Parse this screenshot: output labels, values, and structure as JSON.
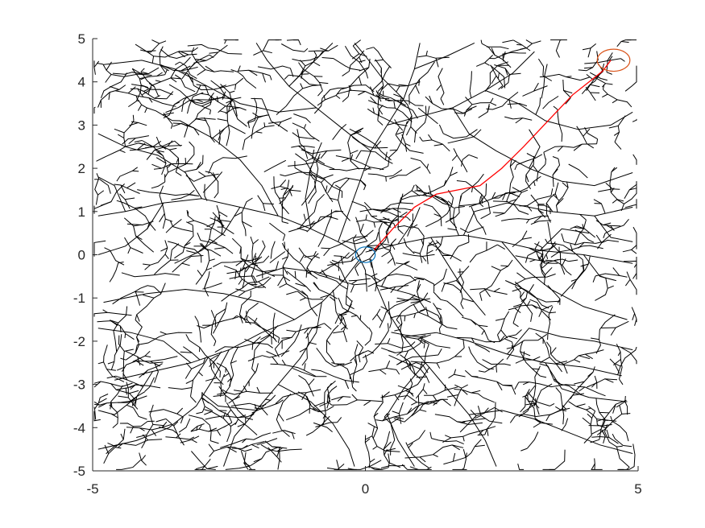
{
  "chart_data": {
    "type": "line",
    "title": "",
    "xlabel": "",
    "ylabel": "",
    "xlim": [
      -5,
      5
    ],
    "ylim": [
      -5,
      5
    ],
    "grid": false,
    "x_ticks": [
      {
        "value": -5,
        "label": "-5"
      },
      {
        "value": 0,
        "label": "0"
      },
      {
        "value": 5,
        "label": "5"
      }
    ],
    "y_ticks": [
      {
        "value": 5,
        "label": "5"
      },
      {
        "value": 4,
        "label": "4"
      },
      {
        "value": 3,
        "label": "3"
      },
      {
        "value": 2,
        "label": "2"
      },
      {
        "value": 1,
        "label": "1"
      },
      {
        "value": 0,
        "label": "0"
      },
      {
        "value": -1,
        "label": "-1"
      },
      {
        "value": -2,
        "label": "-2"
      },
      {
        "value": -3,
        "label": "-3"
      },
      {
        "value": -4,
        "label": "-4"
      },
      {
        "value": -5,
        "label": "-5"
      }
    ],
    "tree": {
      "color": "#000000",
      "root": [
        0,
        0
      ],
      "branches": [
        [
          [
            0.15,
            0.1
          ],
          [
            0.6,
            0.25
          ],
          [
            1.2,
            0.4
          ],
          [
            1.8,
            0.45
          ],
          [
            2.5,
            0.3
          ],
          [
            3.2,
            0.1
          ],
          [
            4.0,
            0.0
          ],
          [
            4.9,
            -0.2
          ]
        ],
        [
          [
            0.6,
            0.25
          ],
          [
            0.9,
            0.8
          ],
          [
            1.0,
            1.1
          ]
        ],
        [
          [
            1.2,
            0.4
          ],
          [
            1.5,
            -0.2
          ],
          [
            1.8,
            -0.8
          ],
          [
            2.2,
            -1.4
          ]
        ],
        [
          [
            1.8,
            0.45
          ],
          [
            2.0,
            1.0
          ],
          [
            2.6,
            1.2
          ],
          [
            3.4,
            1.0
          ],
          [
            4.2,
            0.9
          ],
          [
            4.9,
            1.1
          ]
        ],
        [
          [
            2.5,
            0.3
          ],
          [
            2.9,
            -0.3
          ],
          [
            3.4,
            -0.8
          ],
          [
            4.0,
            -1.2
          ],
          [
            4.8,
            -1.5
          ]
        ],
        [
          [
            3.2,
            0.1
          ],
          [
            3.6,
            0.6
          ],
          [
            4.1,
            0.5
          ]
        ],
        [
          [
            4.0,
            0.0
          ],
          [
            4.3,
            -0.5
          ],
          [
            4.6,
            -0.6
          ]
        ],
        [
          [
            -0.15,
            0.05
          ],
          [
            -0.5,
            0.3
          ],
          [
            -1.0,
            0.6
          ],
          [
            -1.6,
            0.9
          ],
          [
            -2.3,
            1.1
          ],
          [
            -3.0,
            1.3
          ],
          [
            -3.7,
            1.2
          ],
          [
            -4.4,
            1.0
          ],
          [
            -4.9,
            0.9
          ]
        ],
        [
          [
            -1.0,
            0.6
          ],
          [
            -1.1,
            1.3
          ],
          [
            -1.0,
            2.0
          ],
          [
            -0.8,
            2.6
          ]
        ],
        [
          [
            -1.6,
            0.9
          ],
          [
            -1.9,
            1.6
          ],
          [
            -2.3,
            2.2
          ],
          [
            -2.8,
            2.7
          ],
          [
            -3.4,
            3.1
          ]
        ],
        [
          [
            -2.3,
            1.1
          ],
          [
            -2.6,
            0.5
          ],
          [
            -3.0,
            0.1
          ],
          [
            -3.5,
            -0.2
          ]
        ],
        [
          [
            -3.0,
            1.3
          ],
          [
            -3.3,
            1.9
          ],
          [
            -3.8,
            2.3
          ],
          [
            -4.4,
            2.5
          ],
          [
            -4.9,
            2.8
          ]
        ],
        [
          [
            -3.7,
            1.2
          ],
          [
            -4.0,
            0.6
          ],
          [
            -4.4,
            0.2
          ],
          [
            -4.9,
            0.0
          ]
        ],
        [
          [
            -0.5,
            0.3
          ],
          [
            -0.3,
            1.0
          ],
          [
            -0.1,
            1.7
          ],
          [
            0.1,
            2.4
          ],
          [
            0.4,
            3.0
          ],
          [
            0.7,
            3.6
          ],
          [
            0.9,
            4.3
          ],
          [
            1.0,
            4.9
          ]
        ],
        [
          [
            0.1,
            2.4
          ],
          [
            -0.4,
            2.9
          ],
          [
            -0.9,
            3.4
          ],
          [
            -1.4,
            3.9
          ],
          [
            -1.8,
            4.5
          ],
          [
            -2.0,
            4.9
          ]
        ],
        [
          [
            0.4,
            3.0
          ],
          [
            1.0,
            3.2
          ],
          [
            1.6,
            3.4
          ],
          [
            2.2,
            3.8
          ],
          [
            2.7,
            4.2
          ],
          [
            3.1,
            4.7
          ]
        ],
        [
          [
            -0.9,
            3.4
          ],
          [
            -1.6,
            3.3
          ],
          [
            -2.3,
            3.5
          ],
          [
            -2.9,
            3.9
          ],
          [
            -3.5,
            4.3
          ],
          [
            -4.1,
            4.5
          ],
          [
            -4.8,
            4.4
          ]
        ],
        [
          [
            -1.4,
            3.9
          ],
          [
            -1.0,
            4.4
          ],
          [
            -0.6,
            4.9
          ]
        ],
        [
          [
            1.6,
            3.4
          ],
          [
            1.9,
            2.8
          ],
          [
            2.4,
            2.4
          ],
          [
            3.0,
            2.0
          ],
          [
            3.6,
            1.7
          ],
          [
            4.2,
            1.6
          ],
          [
            4.9,
            1.9
          ]
        ],
        [
          [
            2.2,
            3.8
          ],
          [
            2.8,
            3.5
          ],
          [
            3.3,
            3.1
          ],
          [
            3.9,
            2.9
          ],
          [
            4.5,
            3.0
          ],
          [
            4.9,
            3.3
          ]
        ],
        [
          [
            0.9,
            4.3
          ],
          [
            1.5,
            4.6
          ],
          [
            2.0,
            4.9
          ]
        ],
        [
          [
            -0.1,
            -0.1
          ],
          [
            -0.4,
            -0.6
          ],
          [
            -0.8,
            -1.1
          ],
          [
            -1.3,
            -1.5
          ],
          [
            -1.9,
            -1.8
          ],
          [
            -2.5,
            -2.2
          ],
          [
            -3.2,
            -2.5
          ],
          [
            -3.9,
            -2.7
          ],
          [
            -4.6,
            -2.9
          ]
        ],
        [
          [
            -0.8,
            -1.1
          ],
          [
            -0.9,
            -1.8
          ],
          [
            -1.2,
            -2.4
          ],
          [
            -1.6,
            -3.0
          ],
          [
            -2.0,
            -3.6
          ],
          [
            -2.4,
            -4.2
          ],
          [
            -2.6,
            -4.9
          ]
        ],
        [
          [
            -1.3,
            -1.5
          ],
          [
            -1.9,
            -1.1
          ],
          [
            -2.6,
            -0.9
          ],
          [
            -3.3,
            -0.8
          ],
          [
            -4.0,
            -0.9
          ],
          [
            -4.8,
            -1.1
          ]
        ],
        [
          [
            -2.5,
            -2.2
          ],
          [
            -2.8,
            -2.9
          ],
          [
            -3.1,
            -3.5
          ],
          [
            -3.6,
            -4.0
          ],
          [
            -4.2,
            -4.3
          ],
          [
            -4.9,
            -4.5
          ]
        ],
        [
          [
            -3.2,
            -2.5
          ],
          [
            -3.7,
            -2.0
          ],
          [
            -4.3,
            -1.8
          ],
          [
            -4.9,
            -1.7
          ]
        ],
        [
          [
            -1.6,
            -3.0
          ],
          [
            -1.0,
            -3.4
          ],
          [
            -0.6,
            -3.9
          ],
          [
            -0.3,
            -4.5
          ],
          [
            -0.2,
            -4.9
          ]
        ],
        [
          [
            0.1,
            -0.1
          ],
          [
            0.2,
            -0.7
          ],
          [
            0.4,
            -1.3
          ],
          [
            0.7,
            -1.9
          ],
          [
            1.1,
            -2.5
          ],
          [
            1.5,
            -3.1
          ],
          [
            1.9,
            -3.7
          ],
          [
            2.2,
            -4.3
          ],
          [
            2.4,
            -4.9
          ]
        ],
        [
          [
            0.7,
            -1.9
          ],
          [
            1.3,
            -1.8
          ],
          [
            1.9,
            -2.0
          ],
          [
            2.6,
            -2.3
          ],
          [
            3.3,
            -2.5
          ],
          [
            4.0,
            -2.6
          ],
          [
            4.7,
            -2.8
          ]
        ],
        [
          [
            1.1,
            -2.5
          ],
          [
            0.7,
            -3.1
          ],
          [
            0.4,
            -3.7
          ],
          [
            0.6,
            -4.3
          ],
          [
            0.9,
            -4.9
          ]
        ],
        [
          [
            1.9,
            -3.7
          ],
          [
            2.5,
            -3.6
          ],
          [
            3.1,
            -3.8
          ],
          [
            3.7,
            -4.1
          ],
          [
            4.3,
            -4.4
          ],
          [
            4.9,
            -4.6
          ]
        ],
        [
          [
            2.6,
            -2.3
          ],
          [
            3.0,
            -1.7
          ],
          [
            3.6,
            -1.9
          ],
          [
            4.2,
            -2.0
          ],
          [
            4.9,
            -2.2
          ]
        ],
        [
          [
            3.3,
            -2.5
          ],
          [
            3.6,
            -3.1
          ],
          [
            4.1,
            -3.3
          ],
          [
            4.8,
            -3.4
          ]
        ],
        [
          [
            -0.4,
            -0.6
          ],
          [
            -0.9,
            -0.4
          ],
          [
            -1.5,
            -0.3
          ],
          [
            -2.0,
            -0.5
          ]
        ],
        [
          [
            0.2,
            -0.7
          ],
          [
            0.8,
            -0.9
          ],
          [
            1.2,
            -1.1
          ]
        ],
        [
          [
            -4.4,
            1.0
          ],
          [
            -4.6,
            1.6
          ],
          [
            -4.9,
            1.8
          ]
        ],
        [
          [
            -2.8,
            2.7
          ],
          [
            -2.5,
            3.0
          ],
          [
            -2.2,
            2.8
          ]
        ],
        [
          [
            -3.9,
            -2.7
          ],
          [
            -4.2,
            -3.3
          ],
          [
            -4.6,
            -3.7
          ],
          [
            -4.9,
            -3.6
          ]
        ],
        [
          [
            -2.0,
            -3.6
          ],
          [
            -2.7,
            -3.5
          ],
          [
            -3.0,
            -3.2
          ]
        ],
        [
          [
            4.2,
            0.9
          ],
          [
            4.5,
            0.4
          ],
          [
            4.9,
            0.3
          ]
        ],
        [
          [
            0.7,
            3.6
          ],
          [
            0.3,
            4.1
          ],
          [
            0.0,
            4.6
          ],
          [
            -0.2,
            4.9
          ]
        ],
        [
          [
            3.0,
            2.0
          ],
          [
            3.2,
            2.5
          ],
          [
            3.0,
            2.9
          ]
        ]
      ]
    },
    "path": {
      "color": "#ff0000",
      "points": [
        [
          0.15,
          0.1
        ],
        [
          0.5,
          0.6
        ],
        [
          0.9,
          1.1
        ],
        [
          1.3,
          1.4
        ],
        [
          1.7,
          1.5
        ],
        [
          2.1,
          1.6
        ],
        [
          2.5,
          2.0
        ],
        [
          2.9,
          2.5
        ],
        [
          3.2,
          2.9
        ],
        [
          3.5,
          3.3
        ],
        [
          3.8,
          3.7
        ],
        [
          4.1,
          4.0
        ],
        [
          4.35,
          4.25
        ],
        [
          4.5,
          4.5
        ]
      ]
    },
    "start_marker": {
      "color": "#0072bd",
      "x": 0,
      "y": 0,
      "radius": 0.18
    },
    "goal_marker": {
      "color": "#d95319",
      "x": 4.55,
      "y": 4.5,
      "radius": 0.3
    }
  }
}
